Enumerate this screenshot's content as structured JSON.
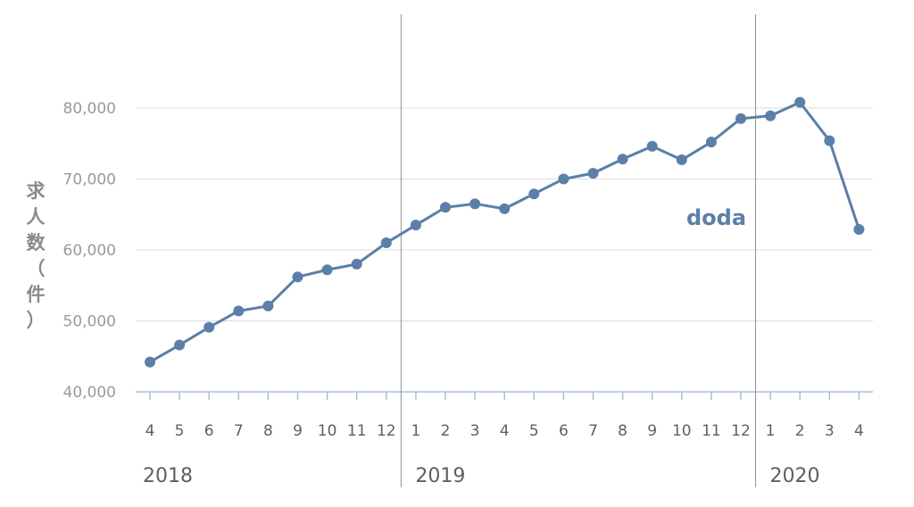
{
  "chart_data": {
    "type": "line",
    "ylabel": "求人数（件）",
    "ylim": [
      40000,
      80000
    ],
    "yticks": [
      40000,
      50000,
      60000,
      70000,
      80000
    ],
    "ytick_labels": [
      "40,000",
      "50,000",
      "60,000",
      "70,000",
      "80,000"
    ],
    "grid": true,
    "categories": [
      "4",
      "5",
      "6",
      "7",
      "8",
      "9",
      "10",
      "11",
      "12",
      "1",
      "2",
      "3",
      "4",
      "5",
      "6",
      "7",
      "8",
      "9",
      "10",
      "11",
      "12",
      "1",
      "2",
      "3",
      "4"
    ],
    "years": [
      {
        "label": "2018",
        "start_index": 0
      },
      {
        "label": "2019",
        "start_index": 9
      },
      {
        "label": "2020",
        "start_index": 21
      }
    ],
    "series": [
      {
        "name": "doda",
        "color": "#5b7fa8",
        "values": [
          44200,
          46600,
          49100,
          51400,
          52100,
          56200,
          57200,
          58000,
          61000,
          63500,
          66000,
          66500,
          65800,
          67900,
          70000,
          70800,
          72800,
          74600,
          72700,
          75200,
          78500,
          78900,
          80800,
          75400,
          62900
        ]
      }
    ]
  }
}
